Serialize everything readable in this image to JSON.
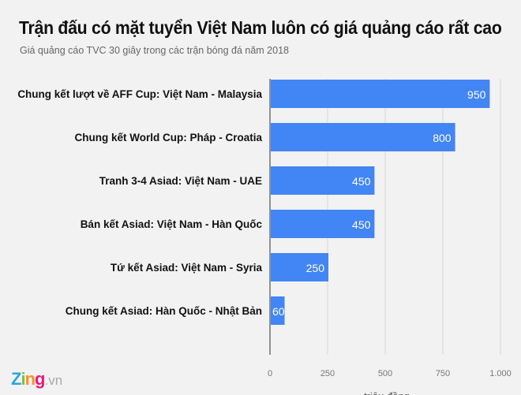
{
  "chart_data": {
    "type": "bar",
    "orientation": "horizontal",
    "title": "Trận đấu có mặt tuyển Việt Nam luôn có giá quảng cáo rất cao",
    "subtitle": "Giá quảng cáo TVC 30 giây trong các trận bóng đá năm 2018",
    "categories": [
      "Chung kết lượt về AFF Cup: Việt Nam - Malaysia",
      "Chung kết World Cup: Pháp - Croatia",
      "Tranh 3-4 Asiad: Việt Nam - UAE",
      "Bán kết Asiad: Việt Nam - Hàn Quốc",
      "Tứ kết Asiad: Việt Nam - Syria",
      "Chung kết Asiad: Hàn Quốc - Nhật Bản"
    ],
    "values": [
      950,
      800,
      450,
      450,
      250,
      60
    ],
    "data_labels": [
      "950",
      "800",
      "450",
      "450",
      "250",
      "60"
    ],
    "xlabel": "triệu đồng",
    "ylabel": "",
    "xlim": [
      0,
      1000
    ],
    "xticks": [
      0,
      250,
      500,
      750,
      1000
    ],
    "xtick_labels": [
      "0",
      "250",
      "500",
      "750",
      "1.000"
    ],
    "grid": true,
    "bar_color": "#4285f4"
  },
  "logo": {
    "text": "Zing",
    "suffix": ".vn"
  }
}
